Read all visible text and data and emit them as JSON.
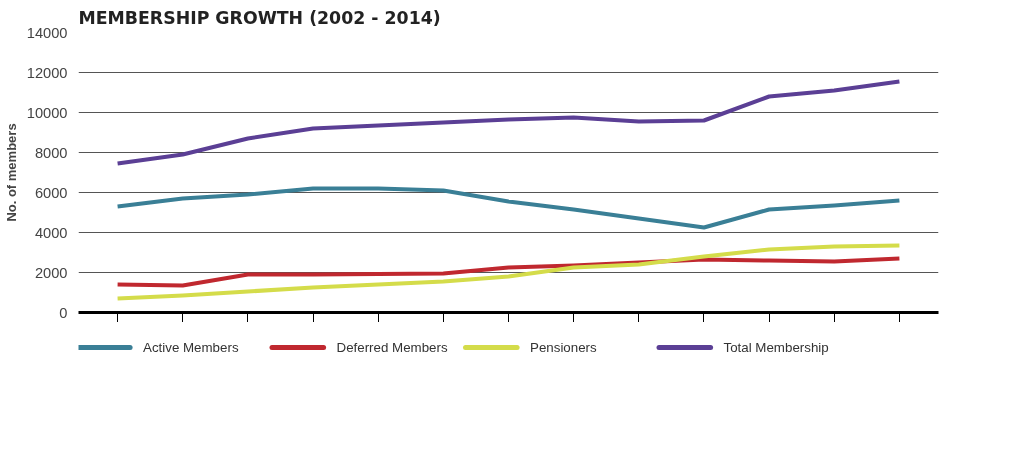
{
  "chart_data": {
    "type": "line",
    "title": "MEMBERSHIP GROWTH (2002 - 2014)",
    "ylabel": "No. of members",
    "categories": [
      null,
      null,
      null,
      null,
      null,
      null,
      null,
      null,
      null,
      null,
      null,
      null,
      null
    ],
    "series": [
      {
        "name": "Active Members",
        "color": "#3a7f96",
        "values": [
          5300,
          5700,
          5900,
          6200,
          6200,
          6100,
          5550,
          5150,
          4700,
          4250,
          5150,
          5350,
          5600
        ]
      },
      {
        "name": "Deferred Members",
        "color": "#c0282f",
        "values": [
          1400,
          1350,
          1900,
          1900,
          1920,
          1950,
          2250,
          2350,
          2500,
          2650,
          2600,
          2550,
          2700
        ]
      },
      {
        "name": "Pensioners",
        "color": "#d4dc4a",
        "values": [
          700,
          850,
          1050,
          1250,
          1400,
          1550,
          1800,
          2250,
          2400,
          2800,
          3150,
          3300,
          3350
        ]
      },
      {
        "name": "Total Membership",
        "color": "#5b3f95",
        "values": [
          7450,
          7900,
          8700,
          9200,
          9350,
          9500,
          9650,
          9750,
          9550,
          9600,
          10800,
          11100,
          11550
        ]
      }
    ],
    "ylim": [
      0,
      14000
    ],
    "yticks": [
      0,
      2000,
      4000,
      6000,
      8000,
      10000,
      12000,
      14000
    ],
    "grid": "y",
    "legend": "bottom",
    "tick_labels": "y",
    "marker": "none",
    "line_style": "solid"
  }
}
